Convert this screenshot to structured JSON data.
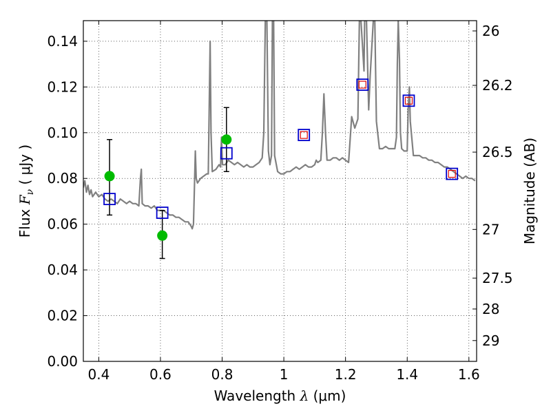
{
  "chart_data": {
    "type": "scatter",
    "title": "",
    "xlabel": {
      "prefix": "Wavelength  ",
      "symbol": "λ",
      "units": " (μm)"
    },
    "ylabel": {
      "prefix": "Flux  ",
      "symbol": "F",
      "subscript": "ν",
      "units": "  ( μJy )"
    },
    "y2label": "Magnitude (AB)",
    "xlim": [
      0.35,
      1.625
    ],
    "ylim": [
      0.0,
      0.149
    ],
    "grid": true,
    "grid_style": "dotted",
    "x_ticks": [
      0.4,
      0.6,
      0.8,
      1.0,
      1.2,
      1.4,
      1.6
    ],
    "x_tick_labels": [
      "0.4",
      "0.6",
      "0.8",
      "1",
      "1.2",
      "1.4",
      "1.6"
    ],
    "y_ticks": [
      0.0,
      0.02,
      0.04,
      0.06,
      0.08,
      0.1,
      0.12,
      0.14
    ],
    "y_tick_labels": [
      "0.00",
      "0.02",
      "0.04",
      "0.06",
      "0.08",
      "0.10",
      "0.12",
      "0.14"
    ],
    "y2_ticks": [
      {
        "label": "26",
        "flux": 0.1445
      },
      {
        "label": "26.2",
        "flux": 0.1207
      },
      {
        "label": "26.5",
        "flux": 0.0915
      },
      {
        "label": "27",
        "flux": 0.0577
      },
      {
        "label": "27.5",
        "flux": 0.0364
      },
      {
        "label": "28",
        "flux": 0.0229
      },
      {
        "label": "29",
        "flux": 0.0091
      }
    ],
    "series": [
      {
        "type": "line",
        "color": "#808080",
        "points": [
          [
            0.35,
            0.076
          ],
          [
            0.355,
            0.079
          ],
          [
            0.36,
            0.074
          ],
          [
            0.365,
            0.077
          ],
          [
            0.37,
            0.073
          ],
          [
            0.375,
            0.075
          ],
          [
            0.38,
            0.072
          ],
          [
            0.39,
            0.074
          ],
          [
            0.4,
            0.072
          ],
          [
            0.41,
            0.073
          ],
          [
            0.42,
            0.071
          ],
          [
            0.43,
            0.07
          ],
          [
            0.44,
            0.071
          ],
          [
            0.45,
            0.07
          ],
          [
            0.46,
            0.069
          ],
          [
            0.47,
            0.071
          ],
          [
            0.48,
            0.07
          ],
          [
            0.49,
            0.069
          ],
          [
            0.5,
            0.07
          ],
          [
            0.51,
            0.069
          ],
          [
            0.52,
            0.069
          ],
          [
            0.53,
            0.068
          ],
          [
            0.535,
            0.08
          ],
          [
            0.538,
            0.084
          ],
          [
            0.541,
            0.069
          ],
          [
            0.55,
            0.068
          ],
          [
            0.56,
            0.068
          ],
          [
            0.57,
            0.067
          ],
          [
            0.58,
            0.068
          ],
          [
            0.59,
            0.066
          ],
          [
            0.6,
            0.066
          ],
          [
            0.61,
            0.066
          ],
          [
            0.62,
            0.065
          ],
          [
            0.63,
            0.064
          ],
          [
            0.64,
            0.064
          ],
          [
            0.65,
            0.063
          ],
          [
            0.66,
            0.063
          ],
          [
            0.67,
            0.062
          ],
          [
            0.68,
            0.061
          ],
          [
            0.69,
            0.061
          ],
          [
            0.7,
            0.059
          ],
          [
            0.703,
            0.058
          ],
          [
            0.707,
            0.06
          ],
          [
            0.71,
            0.075
          ],
          [
            0.713,
            0.092
          ],
          [
            0.716,
            0.08
          ],
          [
            0.72,
            0.078
          ],
          [
            0.73,
            0.08
          ],
          [
            0.74,
            0.081
          ],
          [
            0.75,
            0.082
          ],
          [
            0.755,
            0.082
          ],
          [
            0.758,
            0.11
          ],
          [
            0.761,
            0.14
          ],
          [
            0.764,
            0.1
          ],
          [
            0.768,
            0.083
          ],
          [
            0.78,
            0.084
          ],
          [
            0.79,
            0.086
          ],
          [
            0.795,
            0.085
          ],
          [
            0.798,
            0.098
          ],
          [
            0.801,
            0.086
          ],
          [
            0.81,
            0.086
          ],
          [
            0.82,
            0.088
          ],
          [
            0.83,
            0.087
          ],
          [
            0.84,
            0.086
          ],
          [
            0.85,
            0.087
          ],
          [
            0.86,
            0.086
          ],
          [
            0.87,
            0.085
          ],
          [
            0.88,
            0.086
          ],
          [
            0.89,
            0.085
          ],
          [
            0.9,
            0.085
          ],
          [
            0.91,
            0.086
          ],
          [
            0.92,
            0.087
          ],
          [
            0.93,
            0.089
          ],
          [
            0.935,
            0.1
          ],
          [
            0.94,
            0.149
          ],
          [
            0.945,
            0.149
          ],
          [
            0.95,
            0.092
          ],
          [
            0.955,
            0.086
          ],
          [
            0.96,
            0.09
          ],
          [
            0.963,
            0.149
          ],
          [
            0.967,
            0.149
          ],
          [
            0.97,
            0.09
          ],
          [
            0.98,
            0.083
          ],
          [
            0.99,
            0.082
          ],
          [
            1.0,
            0.082
          ],
          [
            1.01,
            0.083
          ],
          [
            1.02,
            0.083
          ],
          [
            1.03,
            0.084
          ],
          [
            1.04,
            0.085
          ],
          [
            1.05,
            0.084
          ],
          [
            1.06,
            0.085
          ],
          [
            1.07,
            0.086
          ],
          [
            1.08,
            0.085
          ],
          [
            1.09,
            0.085
          ],
          [
            1.1,
            0.086
          ],
          [
            1.105,
            0.088
          ],
          [
            1.11,
            0.087
          ],
          [
            1.12,
            0.088
          ],
          [
            1.125,
            0.1
          ],
          [
            1.13,
            0.117
          ],
          [
            1.135,
            0.1
          ],
          [
            1.14,
            0.088
          ],
          [
            1.15,
            0.088
          ],
          [
            1.16,
            0.089
          ],
          [
            1.17,
            0.089
          ],
          [
            1.18,
            0.088
          ],
          [
            1.19,
            0.089
          ],
          [
            1.2,
            0.088
          ],
          [
            1.21,
            0.087
          ],
          [
            1.22,
            0.107
          ],
          [
            1.23,
            0.102
          ],
          [
            1.24,
            0.106
          ],
          [
            1.245,
            0.149
          ],
          [
            1.25,
            0.149
          ],
          [
            1.26,
            0.127
          ],
          [
            1.262,
            0.149
          ],
          [
            1.268,
            0.149
          ],
          [
            1.275,
            0.11
          ],
          [
            1.28,
            0.125
          ],
          [
            1.29,
            0.149
          ],
          [
            1.295,
            0.149
          ],
          [
            1.3,
            0.105
          ],
          [
            1.31,
            0.093
          ],
          [
            1.32,
            0.093
          ],
          [
            1.33,
            0.094
          ],
          [
            1.34,
            0.093
          ],
          [
            1.35,
            0.093
          ],
          [
            1.36,
            0.093
          ],
          [
            1.365,
            0.098
          ],
          [
            1.368,
            0.13
          ],
          [
            1.371,
            0.149
          ],
          [
            1.375,
            0.132
          ],
          [
            1.378,
            0.1
          ],
          [
            1.382,
            0.093
          ],
          [
            1.39,
            0.092
          ],
          [
            1.4,
            0.092
          ],
          [
            1.403,
            0.11
          ],
          [
            1.407,
            0.12
          ],
          [
            1.41,
            0.105
          ],
          [
            1.42,
            0.09
          ],
          [
            1.43,
            0.09
          ],
          [
            1.44,
            0.09
          ],
          [
            1.45,
            0.089
          ],
          [
            1.46,
            0.089
          ],
          [
            1.47,
            0.088
          ],
          [
            1.48,
            0.088
          ],
          [
            1.49,
            0.087
          ],
          [
            1.5,
            0.087
          ],
          [
            1.51,
            0.086
          ],
          [
            1.52,
            0.085
          ],
          [
            1.53,
            0.085
          ],
          [
            1.54,
            0.084
          ],
          [
            1.55,
            0.083
          ],
          [
            1.56,
            0.082
          ],
          [
            1.57,
            0.081
          ],
          [
            1.58,
            0.08
          ],
          [
            1.59,
            0.081
          ],
          [
            1.6,
            0.08
          ],
          [
            1.61,
            0.08
          ],
          [
            1.62,
            0.079
          ]
        ]
      },
      {
        "type": "errorbar",
        "color": "#00bb00",
        "points": [
          {
            "x": 0.435,
            "y": 0.081,
            "ylo": 0.064,
            "yhi": 0.097
          },
          {
            "x": 0.606,
            "y": 0.055,
            "ylo": 0.045,
            "yhi": 0.066
          },
          {
            "x": 0.814,
            "y": 0.097,
            "ylo": 0.083,
            "yhi": 0.111
          }
        ]
      },
      {
        "type": "square",
        "color": "#0000cc",
        "points": [
          [
            0.435,
            0.071
          ],
          [
            0.606,
            0.065
          ],
          [
            0.814,
            0.091
          ],
          [
            1.065,
            0.099
          ],
          [
            1.255,
            0.121
          ],
          [
            1.405,
            0.114
          ],
          [
            1.545,
            0.082
          ]
        ]
      },
      {
        "type": "square_small",
        "color": "#dd0000",
        "points": [
          [
            1.065,
            0.099
          ],
          [
            1.255,
            0.121
          ],
          [
            1.405,
            0.114
          ],
          [
            1.545,
            0.082
          ]
        ]
      }
    ]
  }
}
